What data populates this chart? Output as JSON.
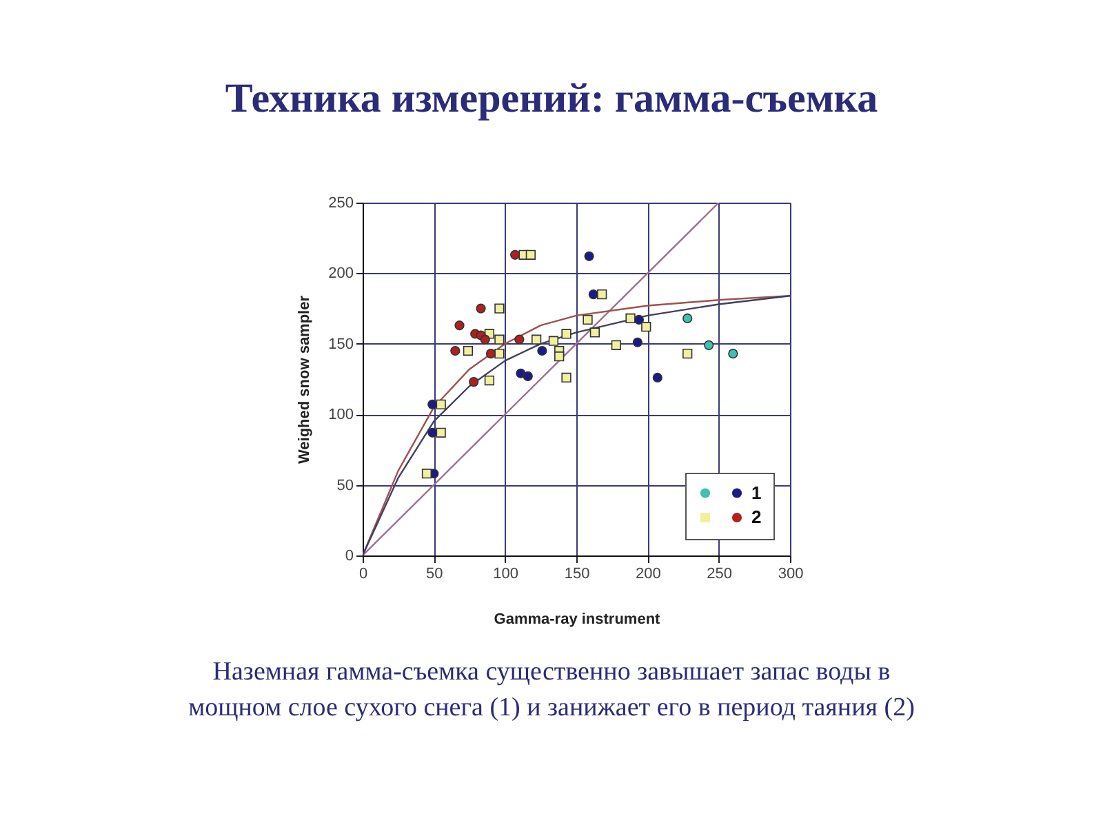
{
  "chart_data": {
    "type": "scatter",
    "title": "Техника измерений: гамма-съемка",
    "xlabel": "Gamma-ray instrument",
    "ylabel": "Weighed snow sampler",
    "xlim": [
      0,
      300
    ],
    "xticks": [
      0,
      50,
      100,
      150,
      200,
      250,
      300
    ],
    "ylim": [
      0,
      250
    ],
    "yticks": [
      0,
      50,
      100,
      150,
      200,
      250
    ],
    "grid": true,
    "legend": "bottom right",
    "annotations": [
      "Наземная гамма-съемка существенно завышает запас воды в\nмощном слое сухого снега (1) и занижает его в период таяния (2)"
    ],
    "series": [
      {
        "color": "#40c0b0",
        "marker": "circle",
        "x": [
          228,
          243,
          260
        ],
        "values": [
          168,
          149,
          143
        ]
      },
      {
        "name": "1",
        "color": "#1a1a8c",
        "marker": "circle",
        "x": [
          49,
          49,
          50,
          111,
          116,
          126,
          159,
          162,
          194,
          193,
          207
        ],
        "values": [
          107,
          87,
          58,
          129,
          127,
          145,
          212,
          185,
          167,
          151,
          126
        ]
      },
      {
        "color": "#f0f0a0",
        "marker": "square",
        "x": [
          113,
          118,
          96,
          89,
          96,
          96,
          74,
          89,
          55,
          55,
          45,
          122,
          134,
          138,
          138,
          143,
          143,
          168,
          158,
          163,
          178,
          188,
          199,
          228
        ],
        "values": [
          213,
          213,
          175,
          157,
          153,
          143,
          145,
          124,
          107,
          87,
          58,
          153,
          152,
          145,
          141,
          126,
          157,
          185,
          167,
          158,
          149,
          168,
          162,
          143
        ]
      },
      {
        "name": "2",
        "color": "#b02020",
        "marker": "circle",
        "x": [
          107,
          83,
          68,
          79,
          83,
          86,
          65,
          90,
          110,
          78
        ],
        "values": [
          213,
          175,
          163,
          157,
          156,
          153,
          145,
          143,
          153,
          123
        ]
      },
      {
        "type": "line",
        "color": "#9a7090",
        "x": [
          0,
          250
        ],
        "values": [
          0,
          250
        ]
      },
      {
        "type": "line",
        "color": "#a05050",
        "x": [
          0,
          25,
          50,
          75,
          100,
          125,
          150,
          200,
          250,
          300
        ],
        "values": [
          0,
          60,
          105,
          132,
          150,
          163,
          170,
          177,
          181,
          184
        ]
      },
      {
        "type": "line",
        "color": "#404060",
        "x": [
          0,
          25,
          50,
          75,
          100,
          125,
          150,
          200,
          250,
          300
        ],
        "values": [
          0,
          55,
          95,
          120,
          138,
          150,
          158,
          170,
          178,
          184
        ]
      }
    ]
  }
}
